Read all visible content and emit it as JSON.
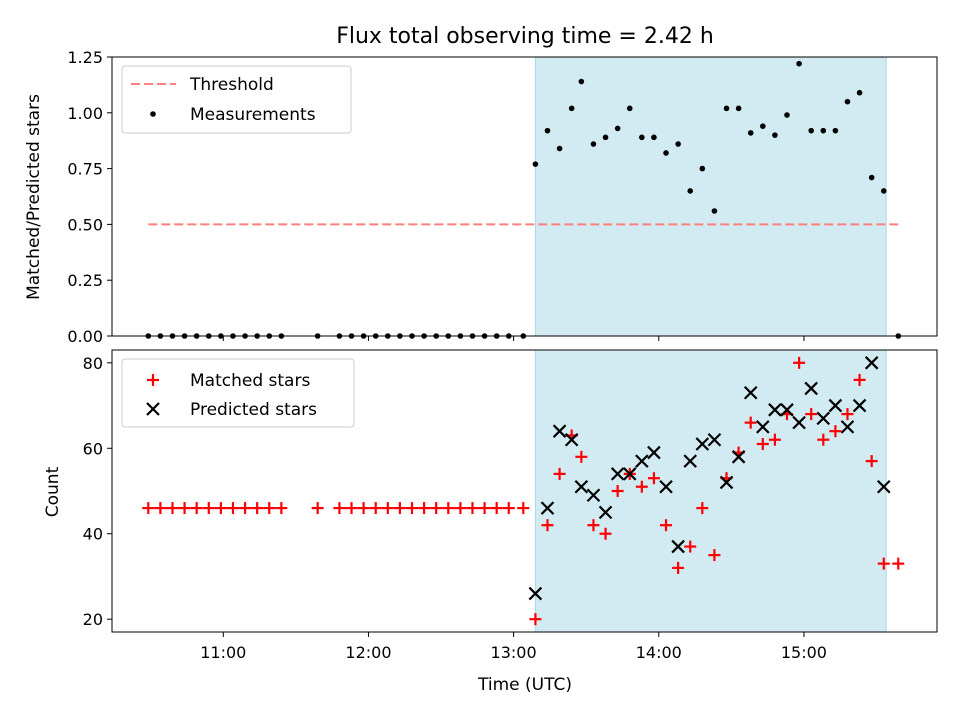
{
  "chart_data": [
    {
      "type": "scatter",
      "title": "Flux total observing time = 2.42 h",
      "xlabel": "",
      "ylabel": "Matched/Predicted stars",
      "xlim": [
        "10:14",
        "15:55"
      ],
      "ylim": [
        0,
        1.25
      ],
      "yticks": [
        "0.00",
        "0.25",
        "0.50",
        "0.75",
        "1.00",
        "1.25"
      ],
      "xticks": [
        "11:00",
        "12:00",
        "13:00",
        "14:00",
        "15:00"
      ],
      "x_tick_labels_shown": false,
      "shaded_region": {
        "start": "13:09",
        "end": "15:34",
        "color": "#add8e6"
      },
      "threshold": {
        "name": "Threshold",
        "value": 0.5,
        "x_start": "10:29",
        "x_end": "15:39",
        "color": "#ff7f7f",
        "style": "dashed"
      },
      "legend": {
        "position": "top-left",
        "entries": [
          "Threshold",
          "Measurements"
        ]
      },
      "series": [
        {
          "name": "Measurements",
          "marker": "dot",
          "color": "#000000",
          "x": [
            "10:29",
            "10:34",
            "10:39",
            "10:44",
            "10:49",
            "10:54",
            "10:59",
            "11:04",
            "11:09",
            "11:14",
            "11:19",
            "11:24",
            "11:39",
            "11:48",
            "11:53",
            "11:58",
            "12:03",
            "12:08",
            "12:13",
            "12:18",
            "12:23",
            "12:28",
            "12:33",
            "12:38",
            "12:43",
            "12:48",
            "12:53",
            "12:58",
            "13:04",
            "13:09",
            "13:14",
            "13:19",
            "13:24",
            "13:28",
            "13:33",
            "13:38",
            "13:43",
            "13:48",
            "13:53",
            "13:58",
            "14:03",
            "14:08",
            "14:13",
            "14:18",
            "14:23",
            "14:28",
            "14:33",
            "14:38",
            "14:43",
            "14:48",
            "14:53",
            "14:58",
            "15:03",
            "15:08",
            "15:13",
            "15:18",
            "15:23",
            "15:28",
            "15:33",
            "15:39"
          ],
          "y": [
            0,
            0,
            0,
            0,
            0,
            0,
            0,
            0,
            0,
            0,
            0,
            0,
            0,
            0,
            0,
            0,
            0,
            0,
            0,
            0,
            0,
            0,
            0,
            0,
            0,
            0,
            0,
            0,
            0,
            0.77,
            0.92,
            0.84,
            1.02,
            1.14,
            0.86,
            0.89,
            0.93,
            1.02,
            0.89,
            0.89,
            0.82,
            0.86,
            0.65,
            0.75,
            0.56,
            1.02,
            1.02,
            0.91,
            0.94,
            0.9,
            0.99,
            1.22,
            0.92,
            0.92,
            0.92,
            1.05,
            1.09,
            0.71,
            0.65,
            0
          ]
        }
      ]
    },
    {
      "type": "scatter",
      "title": "",
      "xlabel": "Time (UTC)",
      "ylabel": "Count",
      "xlim": [
        "10:14",
        "15:55"
      ],
      "ylim": [
        17,
        83
      ],
      "yticks": [
        "20",
        "40",
        "60",
        "80"
      ],
      "xticks": [
        "11:00",
        "12:00",
        "13:00",
        "14:00",
        "15:00"
      ],
      "shaded_region": {
        "start": "13:09",
        "end": "15:34",
        "color": "#add8e6"
      },
      "legend": {
        "position": "top-left",
        "entries": [
          "Matched stars",
          "Predicted stars"
        ]
      },
      "series": [
        {
          "name": "Matched stars",
          "marker": "plus",
          "color": "#ff0000",
          "x": [
            "10:29",
            "10:34",
            "10:39",
            "10:44",
            "10:49",
            "10:54",
            "10:59",
            "11:04",
            "11:09",
            "11:14",
            "11:19",
            "11:24",
            "11:39",
            "11:48",
            "11:53",
            "11:58",
            "12:03",
            "12:08",
            "12:13",
            "12:18",
            "12:23",
            "12:28",
            "12:33",
            "12:38",
            "12:43",
            "12:48",
            "12:53",
            "12:58",
            "13:04",
            "13:09",
            "13:14",
            "13:19",
            "13:24",
            "13:28",
            "13:33",
            "13:38",
            "13:43",
            "13:48",
            "13:53",
            "13:58",
            "14:03",
            "14:08",
            "14:13",
            "14:18",
            "14:23",
            "14:28",
            "14:33",
            "14:38",
            "14:43",
            "14:48",
            "14:53",
            "14:58",
            "15:03",
            "15:08",
            "15:13",
            "15:18",
            "15:23",
            "15:28",
            "15:33",
            "15:39"
          ],
          "y": [
            46,
            46,
            46,
            46,
            46,
            46,
            46,
            46,
            46,
            46,
            46,
            46,
            46,
            46,
            46,
            46,
            46,
            46,
            46,
            46,
            46,
            46,
            46,
            46,
            46,
            46,
            46,
            46,
            46,
            20,
            42,
            54,
            63,
            58,
            42,
            40,
            50,
            54,
            51,
            53,
            42,
            32,
            37,
            46,
            35,
            53,
            59,
            66,
            61,
            62,
            68,
            80,
            68,
            62,
            64,
            68,
            76,
            57,
            33,
            33
          ]
        },
        {
          "name": "Predicted stars",
          "marker": "x",
          "color": "#000000",
          "x": [
            "13:09",
            "13:14",
            "13:19",
            "13:24",
            "13:28",
            "13:33",
            "13:38",
            "13:43",
            "13:48",
            "13:53",
            "13:58",
            "14:03",
            "14:08",
            "14:13",
            "14:18",
            "14:23",
            "14:28",
            "14:33",
            "14:38",
            "14:43",
            "14:48",
            "14:53",
            "14:58",
            "15:03",
            "15:08",
            "15:13",
            "15:18",
            "15:23",
            "15:28",
            "15:33"
          ],
          "y": [
            26,
            46,
            64,
            62,
            51,
            49,
            45,
            54,
            54,
            57,
            59,
            51,
            37,
            57,
            61,
            62,
            52,
            58,
            73,
            65,
            69,
            69,
            66,
            74,
            67,
            70,
            65,
            70,
            80,
            51
          ]
        }
      ]
    }
  ]
}
